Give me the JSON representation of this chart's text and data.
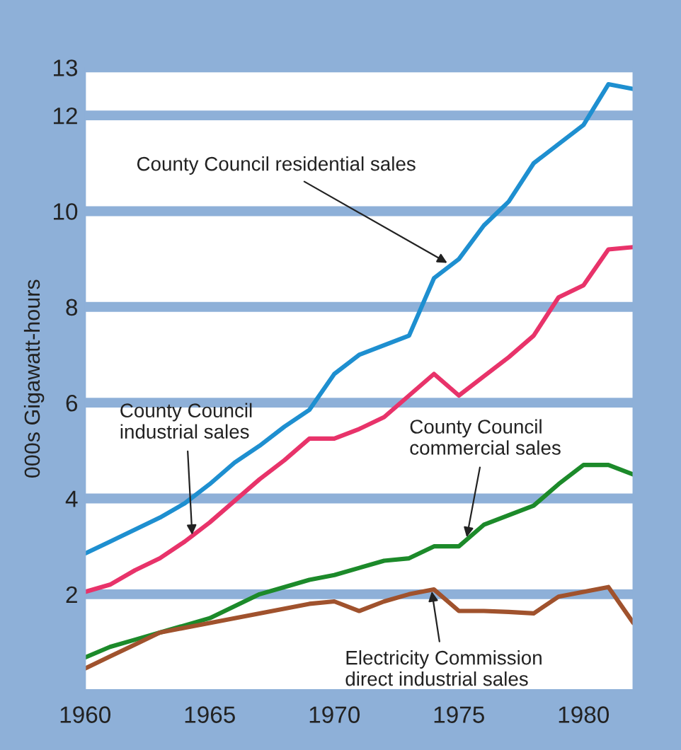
{
  "chart_data": {
    "type": "line",
    "ylabel": "000s Gigawatt-hours",
    "x": [
      1960,
      1961,
      1962,
      1963,
      1964,
      1965,
      1966,
      1967,
      1968,
      1969,
      1970,
      1971,
      1972,
      1973,
      1974,
      1975,
      1976,
      1977,
      1978,
      1979,
      1980,
      1981,
      1982
    ],
    "series": [
      {
        "color": "#1e8fd0",
        "values": [
          2.85,
          3.1,
          3.35,
          3.6,
          3.9,
          4.3,
          4.75,
          5.1,
          5.5,
          5.85,
          6.6,
          7.0,
          7.2,
          7.4,
          8.6,
          9.0,
          9.7,
          10.2,
          11.0,
          11.4,
          11.8,
          12.65,
          12.55
        ]
      },
      {
        "color": "#e8336a",
        "values": [
          2.05,
          2.2,
          2.5,
          2.75,
          3.1,
          3.5,
          3.95,
          4.4,
          4.8,
          5.25,
          5.25,
          5.45,
          5.7,
          6.15,
          6.6,
          6.15,
          6.55,
          6.95,
          7.4,
          8.2,
          8.45,
          9.2,
          9.25
        ]
      },
      {
        "color": "#1c8a2a",
        "values": [
          0.68,
          0.9,
          1.05,
          1.2,
          1.35,
          1.5,
          1.75,
          2.0,
          2.15,
          2.3,
          2.4,
          2.55,
          2.7,
          2.75,
          3.0,
          3.0,
          3.45,
          3.65,
          3.85,
          4.3,
          4.7,
          4.7,
          4.5
        ]
      },
      {
        "color": "#a0522d",
        "values": [
          0.45,
          0.7,
          0.95,
          1.2,
          1.3,
          1.4,
          1.5,
          1.6,
          1.7,
          1.8,
          1.85,
          1.65,
          1.85,
          2.0,
          2.1,
          1.65,
          1.65,
          1.63,
          1.6,
          1.95,
          2.05,
          2.15,
          1.4
        ]
      }
    ],
    "annotations": [
      {
        "text": "County Council residential sales",
        "x": 1974.6,
        "y": 8.9
      },
      {
        "text": "County Council\nindustrial sales",
        "x": 1964.3,
        "y": 3.2
      },
      {
        "text": "County Council\ncommercial sales",
        "x": 1975.3,
        "y": 3.15
      },
      {
        "text": "Electricity Commission\ndirect industrial sales",
        "x": 1973.9,
        "y": 2.1
      }
    ],
    "xlim": [
      1960,
      1982
    ],
    "xticks": [
      1960,
      1965,
      1970,
      1975,
      1980
    ],
    "ylim": [
      0,
      13
    ],
    "yticks": [
      2,
      4,
      6,
      8,
      10,
      12,
      13
    ],
    "grid": "y",
    "marker": "none",
    "line_style": "solid",
    "legend": false
  }
}
